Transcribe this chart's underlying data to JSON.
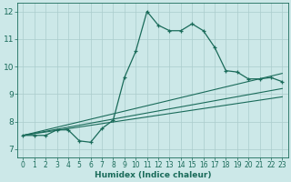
{
  "xlabel": "Humidex (Indice chaleur)",
  "bg_color": "#cce8e8",
  "grid_color": "#aacccc",
  "line_color": "#1a6b5a",
  "xlim": [
    -0.5,
    23.5
  ],
  "ylim": [
    6.7,
    12.3
  ],
  "xticks": [
    0,
    1,
    2,
    3,
    4,
    5,
    6,
    7,
    8,
    9,
    10,
    11,
    12,
    13,
    14,
    15,
    16,
    17,
    18,
    19,
    20,
    21,
    22,
    23
  ],
  "yticks": [
    7,
    8,
    9,
    10,
    11,
    12
  ],
  "curve1_x": [
    0,
    1,
    2,
    3,
    4,
    5,
    6,
    7,
    8,
    9,
    10,
    11,
    12,
    13,
    14,
    15,
    16,
    17,
    18,
    19,
    20,
    21,
    22,
    23
  ],
  "curve1_y": [
    7.5,
    7.5,
    7.5,
    7.7,
    7.7,
    7.3,
    7.25,
    7.75,
    8.05,
    9.6,
    10.55,
    12.0,
    11.5,
    11.3,
    11.3,
    11.55,
    11.3,
    10.7,
    9.85,
    9.8,
    9.55,
    9.55,
    9.6,
    9.45
  ],
  "curve2_x": [
    0,
    23
  ],
  "curve2_y": [
    7.5,
    9.75
  ],
  "curve3_x": [
    0,
    23
  ],
  "curve3_y": [
    7.5,
    9.2
  ],
  "curve4_x": [
    0,
    23
  ],
  "curve4_y": [
    7.5,
    8.9
  ]
}
